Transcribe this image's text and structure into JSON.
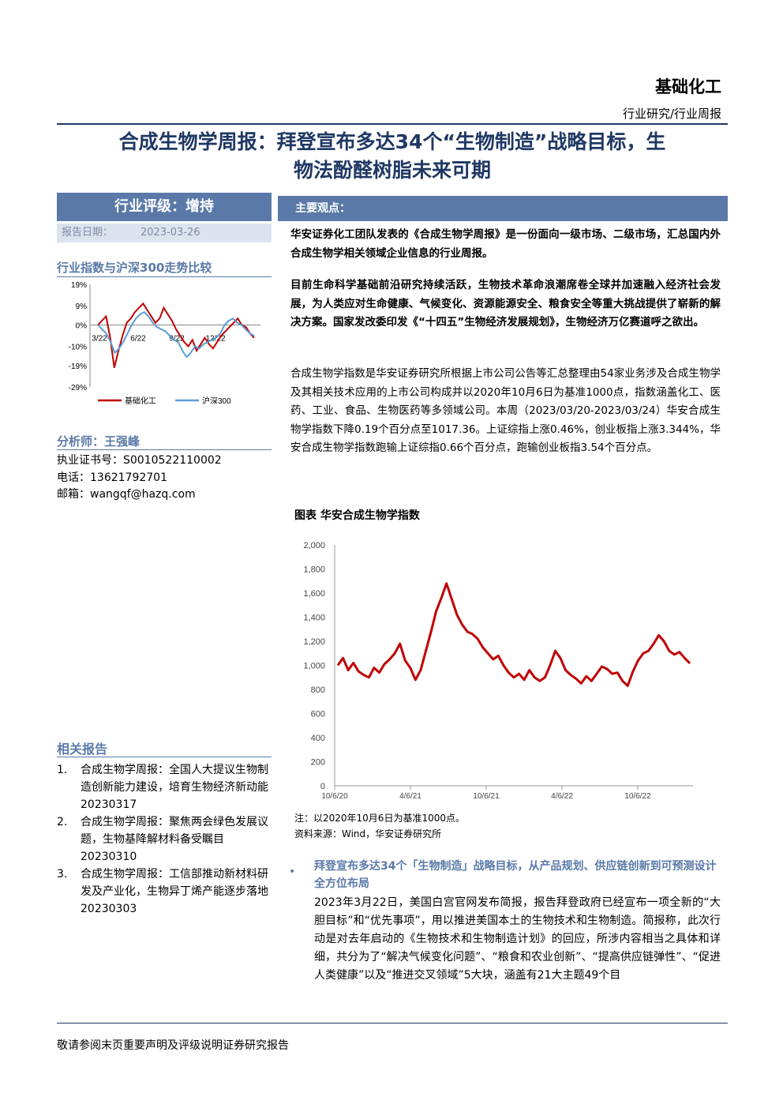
{
  "header": {
    "sector": "基础化工",
    "report_type": "行业研究/行业周报"
  },
  "title": "合成生物学周报：拜登宣布多达34个“生物制造”战略目标，生物法酚醛树脂未来可期",
  "title_lines": [
    "合成生物学周报：拜登宣布多达34个“生物制造”战略目标，生",
    "物法酚醛树脂未来可期"
  ],
  "sidebar": {
    "rating": "行业评级：增持",
    "date_label": "报告日期：",
    "date_value": "2023-03-26",
    "index_title": "行业指数与沪深300走势比较",
    "analyst_title": "分析师：王强峰",
    "cert": "执业证书号：S0010522110002",
    "phone": "电话：13621792701",
    "email": "邮箱：wangqf@hazq.com",
    "related_title": "相关报告",
    "related": [
      {
        "num": "1.",
        "text": "合成生物学周报：全国人大提议生物制造创新能力建设，培育生物经济新动能 20230317"
      },
      {
        "num": "2.",
        "text": "合成生物学周报：聚焦两会绿色发展议题，生物基降解材料备受瞩目 20230310"
      },
      {
        "num": "3.",
        "text": "合成生物学周报：工信部推动新材料研发及产业化，生物异丁烯产能逐步落地 20230303"
      }
    ]
  },
  "main": {
    "viewpoint_title": "主要观点：",
    "p1": "华安证券化工团队发表的《合成生物学周报》是一份面向一级市场、二级市场，汇总国内外合成生物学相关领域企业信息的行业周报。",
    "p2": "目前生命科学基础前沿研究持续活跃，生物技术革命浪潮席卷全球并加速融入经济社会发展，为人类应对生命健康、气候变化、资源能源安全、粮食安全等重大挑战提供了崭新的解决方案。国家发改委印发《“十四五”生物经济发展规划》，生物经济万亿赛道呼之欲出。",
    "p3": "合成生物学指数是华安证券研究所根据上市公司公告等汇总整理由54家业务涉及合成生物学及其相关技术应用的上市公司构成并以2020年10月6日为基准1000点，指数涵盖化工、医药、工业、食品、生物医药等多领域公司。本周（2023/03/20-2023/03/24）华安合成生物学指数下降0.19个百分点至1017.36。上证综指上涨0.46%，创业板指上涨3.344%，华安合成生物学指数跑输上证综指0.66个百分点，跑输创业板指3.54个百分点。",
    "chart_title": "图表 华安合成生物学指数",
    "note": "注：以2020年10月6日为基准1000点。",
    "source": "资料来源：Wind，华安证券研究所",
    "bullet_head": "拜登宣布多达34个「生物制造」战略目标，从产品规划、供应链创新到可预测设计全方位布局",
    "bullet_body": "2023年3月22日，美国白宫官网发布简报，报告拜登政府已经宣布一项全新的“大胆目标”和“优先事项”，用以推进美国本土的生物技术和生物制造。简报称，此次行动是对去年启动的《生物技术和生物制造计划》的回应，所涉内容相当之具体和详细，共分为了“解决气候变化问题”、“粮食和农业创新”、“提高供应链弹性”、“促进人类健康”以及“推进交叉领域”5大块，涵盖有21大主题49个目"
  },
  "footer": "敬请参阅末页重要声明及评级说明证券研究报告",
  "colors": {
    "navy": "#1f3864",
    "accent": "#5a79a8",
    "red": "#c00000",
    "blue": "#5b9bd5"
  },
  "chart_data": [
    {
      "type": "line",
      "y_ticks": [
        "19%",
        "9%",
        "0%",
        "-10%",
        "-19%",
        "-29%"
      ],
      "x_ticks": [
        "3/22",
        "6/22",
        "9/22",
        "12/22"
      ],
      "ylim": [
        -29,
        19
      ],
      "series": [
        {
          "name": "基础化工",
          "color": "#c00000",
          "values": [
            0,
            2,
            4,
            -6,
            -20,
            -12,
            -5,
            1,
            3,
            6,
            8,
            10,
            7,
            4,
            1,
            3,
            8,
            5,
            2,
            -2,
            -5,
            -8,
            -10,
            -7,
            -12,
            -9,
            -6,
            -9,
            -11,
            -8,
            -5,
            -3,
            -1,
            1,
            3,
            0,
            -1,
            -4,
            -6
          ]
        },
        {
          "name": "沪深300",
          "color": "#5b9bd5",
          "values": [
            0,
            -2,
            -4,
            -8,
            -13,
            -11,
            -8,
            -4,
            0,
            3,
            5,
            6,
            4,
            1,
            -1,
            -2,
            -3,
            -5,
            -7,
            -8,
            -12,
            -15,
            -13,
            -10,
            -11,
            -9,
            -8,
            -7,
            -6,
            -4,
            0,
            2,
            3,
            1,
            0,
            -2,
            -4,
            -5
          ]
        }
      ]
    },
    {
      "type": "line",
      "title": "图表 华安合成生物学指数",
      "ylim": [
        0,
        2000
      ],
      "y_ticks": [
        "2,000",
        "1,800",
        "1,600",
        "1,400",
        "1,200",
        "1,000",
        "800",
        "600",
        "400",
        "200",
        "0"
      ],
      "x_ticks": [
        "10/6/20",
        "4/6/21",
        "10/6/21",
        "4/6/22",
        "10/6/22"
      ],
      "series": [
        {
          "name": "华安合成生物学指数",
          "color": "#c00000",
          "values": [
            1000,
            1060,
            960,
            1020,
            950,
            920,
            900,
            980,
            940,
            1010,
            1050,
            1100,
            1180,
            1040,
            980,
            880,
            960,
            1120,
            1280,
            1450,
            1560,
            1680,
            1550,
            1420,
            1340,
            1280,
            1260,
            1220,
            1150,
            1100,
            1050,
            1080,
            1000,
            940,
            900,
            930,
            880,
            960,
            900,
            870,
            900,
            1000,
            1120,
            1060,
            960,
            920,
            890,
            850,
            910,
            870,
            930,
            990,
            970,
            930,
            940,
            870,
            830,
            950,
            1040,
            1100,
            1120,
            1180,
            1250,
            1200,
            1120,
            1090,
            1110,
            1060,
            1017
          ]
        }
      ]
    }
  ]
}
